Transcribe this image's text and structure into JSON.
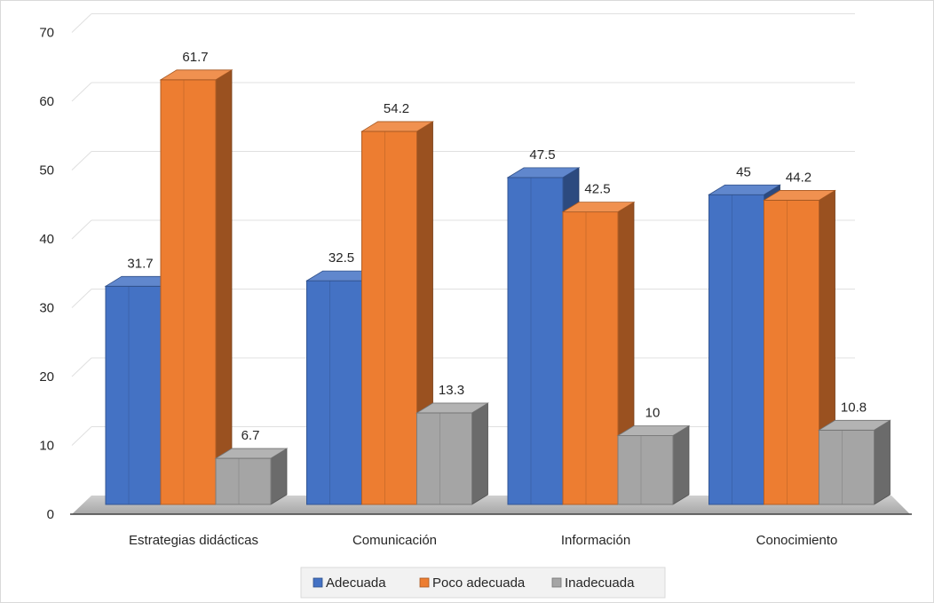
{
  "chart_data": {
    "type": "bar",
    "categories": [
      "Estrategias didácticas",
      "Comunicación",
      "Información",
      "Conocimiento"
    ],
    "series": [
      {
        "name": "Adecuada",
        "values": [
          31.7,
          32.5,
          47.5,
          45
        ],
        "labels": [
          "31.7",
          "32.5",
          "47.5",
          "45"
        ],
        "color": "#4472C4"
      },
      {
        "name": "Poco adecuada",
        "values": [
          61.7,
          54.2,
          42.5,
          44.2
        ],
        "labels": [
          "61.7",
          "54.2",
          "42.5",
          "44.2"
        ],
        "color": "#ED7D31"
      },
      {
        "name": "Inadecuada",
        "values": [
          6.7,
          13.3,
          10,
          10.8
        ],
        "labels": [
          "6.7",
          "13.3",
          "10",
          "10.8"
        ],
        "color": "#A5A5A5"
      }
    ],
    "yticks": [
      "0",
      "10",
      "20",
      "30",
      "40",
      "50",
      "60",
      "70"
    ],
    "ylim": [
      0,
      70
    ],
    "grid": true,
    "legend_position": "bottom",
    "style": "3d-clustered-column"
  }
}
